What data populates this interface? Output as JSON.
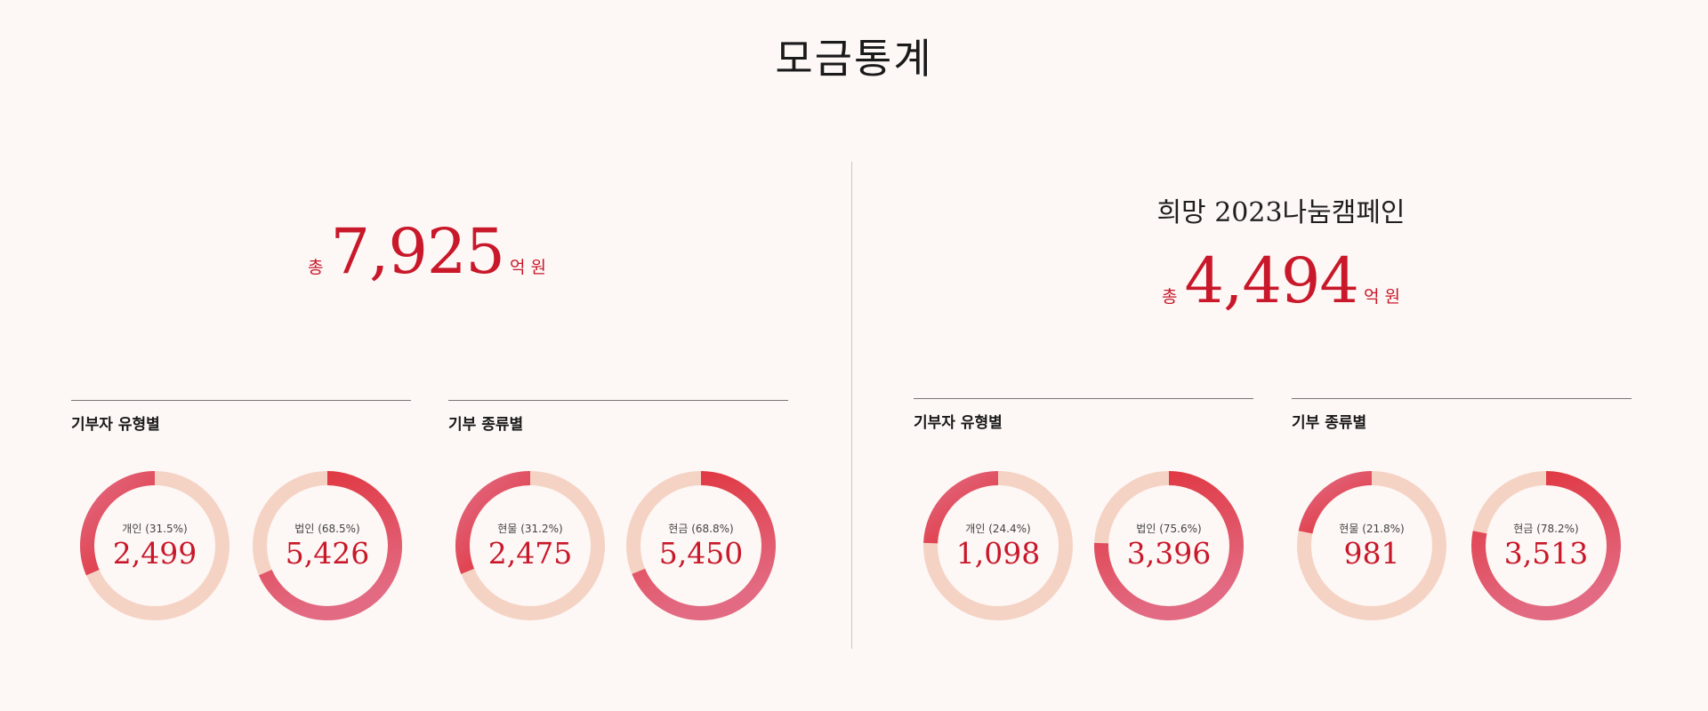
{
  "title": "모금통계",
  "colors": {
    "accent": "#c8182a",
    "track": "#f5d3c4",
    "arc_bright": "#e0343d",
    "arc_soft": "#e26a82"
  },
  "left": {
    "campaign": "",
    "total": {
      "prefix": "총",
      "value": "7,925",
      "unit": "억 원"
    },
    "groups": [
      {
        "label": "기부자 유형별"
      },
      {
        "label": "기부 종류별"
      }
    ]
  },
  "right": {
    "campaign": "희망 2023나눔캠페인",
    "total": {
      "prefix": "총",
      "value": "4,494",
      "unit": "억 원"
    },
    "groups": [
      {
        "label": "기부자 유형별"
      },
      {
        "label": "기부 종류별"
      }
    ]
  },
  "chart_data": [
    {
      "type": "pie",
      "group": "left-donor-type",
      "name": "개인",
      "caption": "개인 (31.5%)",
      "value_label": "2,499",
      "value": 2499,
      "percent": 31.5,
      "start": "counterclockwise"
    },
    {
      "type": "pie",
      "group": "left-donor-type",
      "name": "법인",
      "caption": "법인 (68.5%)",
      "value_label": "5,426",
      "value": 5426,
      "percent": 68.5,
      "start": "clockwise"
    },
    {
      "type": "pie",
      "group": "left-donation-kind",
      "name": "현물",
      "caption": "현물 (31.2%)",
      "value_label": "2,475",
      "value": 2475,
      "percent": 31.2,
      "start": "counterclockwise"
    },
    {
      "type": "pie",
      "group": "left-donation-kind",
      "name": "현금",
      "caption": "현금 (68.8%)",
      "value_label": "5,450",
      "value": 5450,
      "percent": 68.8,
      "start": "clockwise"
    },
    {
      "type": "pie",
      "group": "right-donor-type",
      "name": "개인",
      "caption": "개인 (24.4%)",
      "value_label": "1,098",
      "value": 1098,
      "percent": 24.4,
      "start": "counterclockwise"
    },
    {
      "type": "pie",
      "group": "right-donor-type",
      "name": "법인",
      "caption": "법인 (75.6%)",
      "value_label": "3,396",
      "value": 3396,
      "percent": 75.6,
      "start": "clockwise"
    },
    {
      "type": "pie",
      "group": "right-donation-kind",
      "name": "현물",
      "caption": "현물 (21.8%)",
      "value_label": "981",
      "value": 981,
      "percent": 21.8,
      "start": "counterclockwise"
    },
    {
      "type": "pie",
      "group": "right-donation-kind",
      "name": "현금",
      "caption": "현금 (78.2%)",
      "value_label": "3,513",
      "value": 3513,
      "percent": 78.2,
      "start": "clockwise"
    }
  ]
}
